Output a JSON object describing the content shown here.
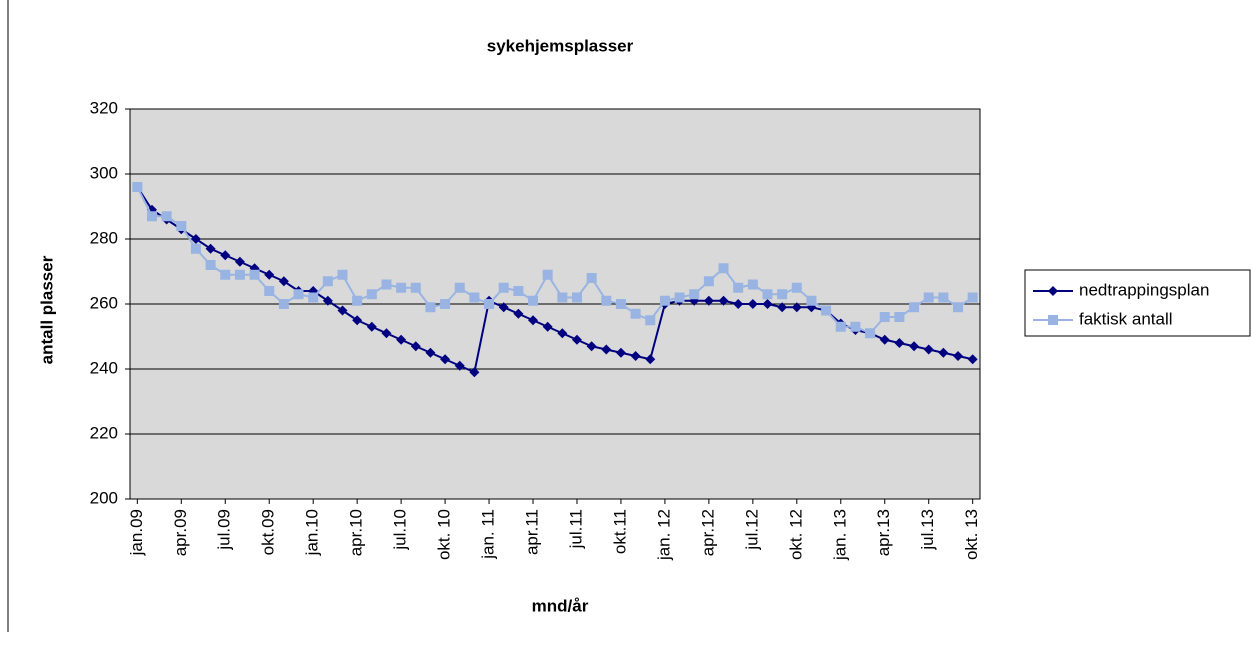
{
  "chart_data": {
    "type": "line",
    "title": "sykehjemsplasser",
    "x_label": "mnd/år",
    "y_label": "antall plasser",
    "categories": [
      "jan.09",
      null,
      null,
      "apr.09",
      null,
      null,
      "jul.09",
      null,
      null,
      "okt.09",
      null,
      null,
      "jan.10",
      null,
      null,
      "apr.10",
      null,
      null,
      "jul.10",
      null,
      null,
      "okt. 10",
      null,
      null,
      "jan. 11",
      null,
      null,
      "apr.11",
      null,
      null,
      "jul.11",
      null,
      null,
      "okt.11",
      null,
      null,
      "jan. 12",
      null,
      null,
      "apr.12",
      null,
      null,
      "jul.12",
      null,
      null,
      "okt. 12",
      null,
      null,
      "jan. 13",
      null,
      null,
      "apr.13",
      null,
      null,
      "jul.13",
      null,
      null,
      "okt. 13"
    ],
    "series": [
      {
        "name": "nedtrappingsplan",
        "color": "#000080",
        "marker": "diamond",
        "values": [
          296,
          289,
          286,
          283,
          280,
          277,
          275,
          273,
          271,
          269,
          267,
          264,
          264,
          261,
          258,
          255,
          253,
          251,
          249,
          247,
          245,
          243,
          241,
          239,
          261,
          259,
          257,
          255,
          253,
          251,
          249,
          247,
          246,
          245,
          244,
          243,
          260,
          261,
          261,
          261,
          261,
          260,
          260,
          260,
          259,
          259,
          259,
          258,
          254,
          252,
          251,
          249,
          248,
          247,
          246,
          245,
          244,
          243
        ]
      },
      {
        "name": "faktisk antall",
        "color": "#99b4e3",
        "marker": "square",
        "values": [
          296,
          287,
          287,
          284,
          277,
          272,
          269,
          269,
          269,
          264,
          260,
          263,
          262,
          267,
          269,
          261,
          263,
          266,
          265,
          265,
          259,
          260,
          265,
          262,
          260,
          265,
          264,
          261,
          269,
          262,
          262,
          268,
          261,
          260,
          257,
          255,
          261,
          262,
          263,
          267,
          271,
          265,
          266,
          263,
          263,
          265,
          261,
          258,
          253,
          253,
          251,
          256,
          256,
          259,
          262,
          262,
          259,
          262
        ]
      }
    ],
    "ylim": [
      200,
      320
    ],
    "yticks": [
      200,
      220,
      240,
      260,
      280,
      300,
      320
    ],
    "grid": true,
    "legend": "right",
    "plot_background": "#d9d9d9"
  }
}
